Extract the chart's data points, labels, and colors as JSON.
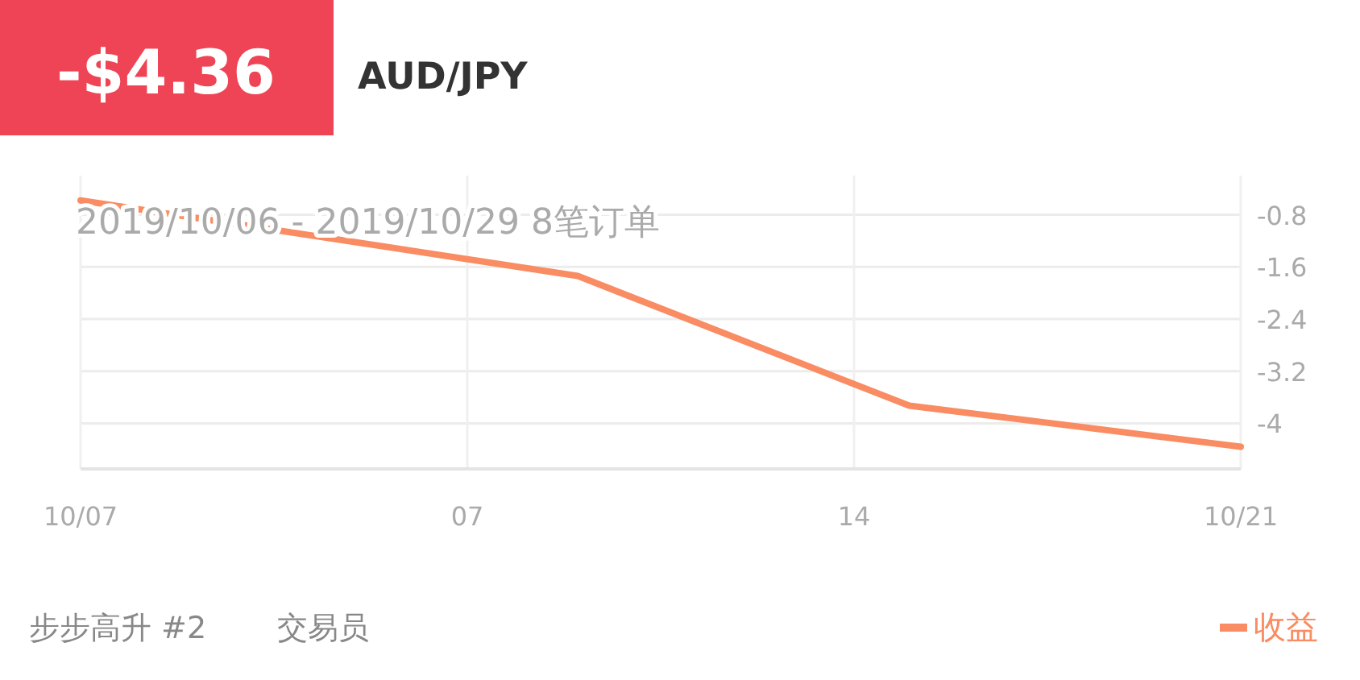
{
  "chart_data": {
    "type": "line",
    "title": "AUD/JPY",
    "subtitle": "2019/10/06 - 2019/10/29  8笔订单",
    "annotations": [
      "-$4.36",
      "步步高升 #2",
      "交易员"
    ],
    "categories": [
      "10/07",
      null,
      null,
      null,
      null,
      null,
      null,
      "07",
      null,
      null,
      null,
      null,
      null,
      null,
      "14",
      null,
      null,
      null,
      null,
      null,
      null,
      "10/21"
    ],
    "ylim": [
      -4.7,
      -0.2
    ],
    "yticks": [
      -0.8,
      -1.6,
      -2.4,
      -3.2,
      -4.0
    ],
    "grid": true,
    "legend": "bottom right",
    "series": [
      {
        "name": "收益",
        "color": "#f98c62",
        "values": [
          -0.58,
          null,
          null,
          null,
          null,
          null,
          null,
          null,
          null,
          -1.74,
          null,
          null,
          null,
          null,
          null,
          -3.73,
          null,
          null,
          null,
          null,
          null,
          -4.36
        ]
      }
    ]
  }
}
